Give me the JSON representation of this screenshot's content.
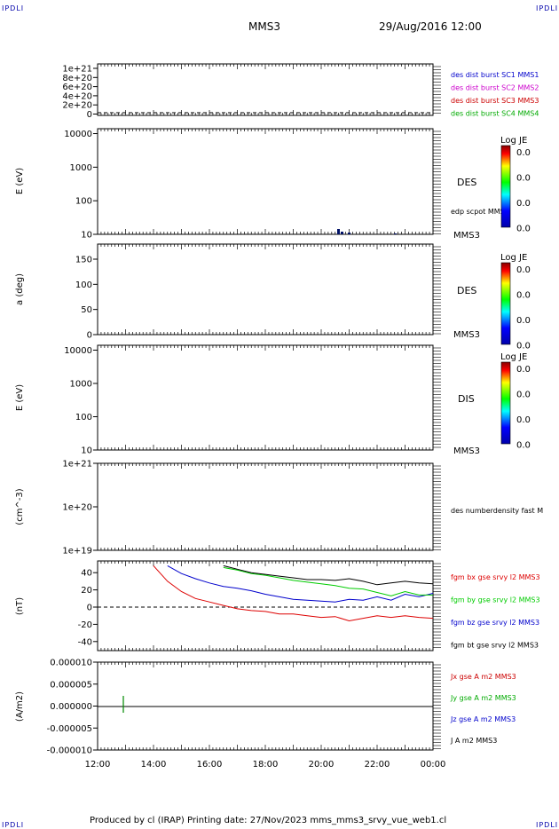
{
  "corner_label": "IPDLI",
  "header": {
    "spacecraft": "MMS3",
    "date": "29/Aug/2016 12:00"
  },
  "footer": "Produced by cl (IRAP)   Printing date: 27/Nov/2023   mms_mms3_srvy_vue_web1.cl",
  "colors": {
    "mms1": "#0000cc",
    "mms2": "#cc00cc",
    "mms3": "#cc0000",
    "mms4": "#00aa00",
    "bx": "#dd0000",
    "by": "#00cc00",
    "bz": "#0000cc",
    "bt": "#000000"
  },
  "chart_data": [
    {
      "type": "line",
      "panel": "dist-burst",
      "ylim": [
        0,
        1e+21
      ],
      "yticks": [
        "1e+21",
        "8e+20",
        "6e+20",
        "4e+20",
        "2e+20",
        "0"
      ],
      "xlim": [
        "12:00",
        "00:00"
      ],
      "zero_dashed": true,
      "legend": [
        "des dist burst SC1 MMS1",
        "des dist burst SC2 MMS2",
        "des dist burst SC3 MMS3",
        "des dist burst SC4 MMS4"
      ]
    },
    {
      "type": "heatmap",
      "panel": "des-energy",
      "ylabel": "E (eV)",
      "yscale": "log",
      "ylim": [
        10,
        14000
      ],
      "yticks": [
        "10000",
        "1000",
        "100",
        "10"
      ],
      "label": "DES",
      "label2": "edp scpot MMS3",
      "sc": "MMS3",
      "colorbar": {
        "title": "Log JE",
        "ticks": [
          "0.0",
          "0.0",
          "0.0",
          "0.0"
        ]
      }
    },
    {
      "type": "heatmap",
      "panel": "des-pitch",
      "ylabel": "a (deg)",
      "ylim": [
        0,
        180
      ],
      "yticks": [
        "150",
        "100",
        "50",
        "0"
      ],
      "label": "DES",
      "sc": "MMS3",
      "colorbar": {
        "title": "Log JE",
        "ticks": [
          "0.0",
          "0.0",
          "0.0",
          "0.0"
        ]
      }
    },
    {
      "type": "heatmap",
      "panel": "dis-energy",
      "ylabel": "E (eV)",
      "yscale": "log",
      "ylim": [
        10,
        14000
      ],
      "yticks": [
        "10000",
        "1000",
        "100",
        "10"
      ],
      "label": "DIS",
      "sc": "MMS3",
      "colorbar": {
        "title": "Log JE",
        "ticks": [
          "0.0",
          "0.0",
          "0.0",
          "0.0"
        ]
      }
    },
    {
      "type": "line",
      "panel": "density",
      "ylabel": "(cm^-3)",
      "yscale": "log",
      "ylim": [
        1e+19,
        1e+21
      ],
      "yticks": [
        "1e+21",
        "1e+20",
        "1e+19"
      ],
      "legend": [
        "des numberdensity fast M"
      ]
    },
    {
      "type": "line",
      "panel": "fgm",
      "ylabel": "(nT)",
      "ylim": [
        -48,
        48
      ],
      "yticks": [
        "40",
        "20",
        "0",
        "-20",
        "-40"
      ],
      "zero_dashed": true,
      "x_hours": [
        14.0,
        14.5,
        15.0,
        15.5,
        16.0,
        16.5,
        17.0,
        17.5,
        18.0,
        18.5,
        19.0,
        19.5,
        20.0,
        20.5,
        21.0,
        21.5,
        22.0,
        22.5,
        23.0,
        23.5,
        24.0
      ],
      "series": [
        {
          "name": "fgm bx gse srvy l2 MMS3",
          "values": [
            48,
            30,
            18,
            10,
            6,
            2,
            -2,
            -4,
            -5,
            -8,
            -8,
            -10,
            -12,
            -11,
            -16,
            -13,
            -10,
            -12,
            -10,
            -12,
            -13
          ]
        },
        {
          "name": "fgm by gse srvy l2 MMS3",
          "values": [
            null,
            null,
            null,
            null,
            null,
            46,
            43,
            39,
            37,
            34,
            31,
            29,
            27,
            25,
            22,
            21,
            17,
            13,
            18,
            14,
            14
          ]
        },
        {
          "name": "fgm bz gse srvy l2 MMS3",
          "values": [
            null,
            48,
            39,
            33,
            28,
            24,
            22,
            19,
            15,
            12,
            9,
            8,
            7,
            6,
            9,
            8,
            12,
            8,
            15,
            12,
            16
          ]
        },
        {
          "name": "fgm bt gse srvy l2 MMS3",
          "values": [
            null,
            null,
            null,
            null,
            null,
            48,
            44,
            40,
            38,
            36,
            34,
            32,
            32,
            31,
            33,
            30,
            26,
            28,
            30,
            28,
            27
          ]
        }
      ]
    },
    {
      "type": "line",
      "panel": "current",
      "ylabel": "(A/m2)",
      "ylim": [
        -1e-05,
        1e-05
      ],
      "yticks": [
        "0.000010",
        "0.000005",
        "0.000000",
        "-0.000005",
        "-0.000010"
      ],
      "legend": [
        "Jx gse A m2 MMS3",
        "Jy gse A m2 MMS3",
        "Jz gse A m2 MMS3",
        "J A m2 MMS3"
      ]
    }
  ],
  "xaxis": {
    "ticks": [
      "12:00",
      "14:00",
      "16:00",
      "18:00",
      "20:00",
      "22:00",
      "00:00"
    ]
  }
}
